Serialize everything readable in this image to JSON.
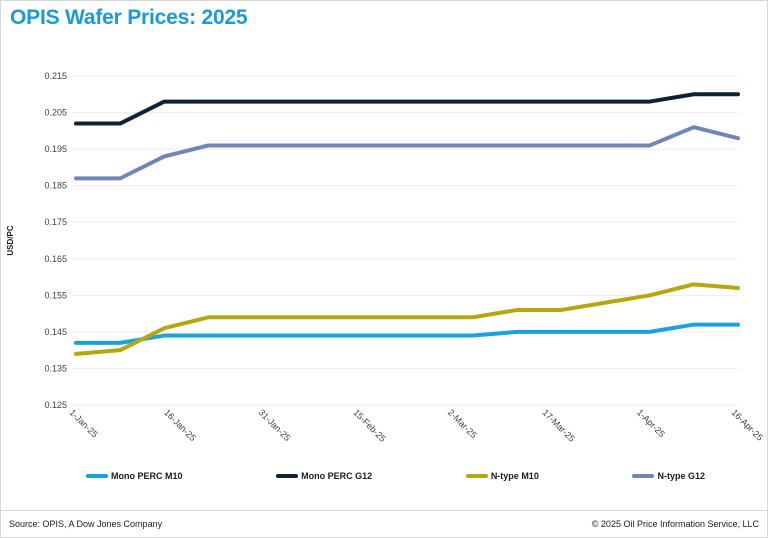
{
  "page": {
    "title": "OPIS Wafer Prices: 2025",
    "title_color": "#199bd8",
    "footer": {
      "source": "Source: OPIS, A Dow Jones Company",
      "copyright": "© 2025 Oil Price Information Service, LLC"
    }
  },
  "chart_data": {
    "type": "line",
    "title": "OPIS Wafer Prices: 2025",
    "xlabel": "",
    "ylabel": "USD/PC",
    "ylim": [
      0.125,
      0.215
    ],
    "y_ticks": [
      0.215,
      0.205,
      0.195,
      0.185,
      0.175,
      0.165,
      0.155,
      0.145,
      0.135,
      0.125
    ],
    "grid": "horizontal",
    "grid_color": "#ededed",
    "legend_position": "bottom",
    "x_days": [
      0,
      7,
      14,
      21,
      28,
      35,
      42,
      49,
      56,
      63,
      70,
      77,
      84,
      91,
      98,
      105
    ],
    "x_dates": [
      "1-Jan-25",
      "8-Jan-25",
      "15-Jan-25",
      "22-Jan-25",
      "29-Jan-25",
      "5-Feb-25",
      "12-Feb-25",
      "19-Feb-25",
      "26-Feb-25",
      "5-Mar-25",
      "12-Mar-25",
      "19-Mar-25",
      "26-Mar-25",
      "2-Apr-25",
      "9-Apr-25",
      "16-Apr-25"
    ],
    "x_ticks": [
      {
        "day": 0,
        "label": "1-Jan-25"
      },
      {
        "day": 15,
        "label": "16-Jan-25"
      },
      {
        "day": 30,
        "label": "31-Jan-25"
      },
      {
        "day": 45,
        "label": "15-Feb-25"
      },
      {
        "day": 60,
        "label": "2-Mar-25"
      },
      {
        "day": 75,
        "label": "17-Mar-25"
      },
      {
        "day": 90,
        "label": "1-Apr-25"
      },
      {
        "day": 105,
        "label": "16-Apr-25"
      }
    ],
    "series": [
      {
        "name": "Mono PERC M10",
        "color": "#1ba2dc",
        "values": [
          0.142,
          0.142,
          0.144,
          0.144,
          0.144,
          0.144,
          0.144,
          0.144,
          0.144,
          0.144,
          0.145,
          0.145,
          0.145,
          0.145,
          0.147,
          0.147
        ]
      },
      {
        "name": "Mono PERC G12",
        "color": "#0f2133",
        "values": [
          0.202,
          0.202,
          0.208,
          0.208,
          0.208,
          0.208,
          0.208,
          0.208,
          0.208,
          0.208,
          0.208,
          0.208,
          0.208,
          0.208,
          0.21,
          0.21
        ]
      },
      {
        "name": "N-type M10",
        "color": "#b4a80e",
        "values": [
          0.139,
          0.14,
          0.146,
          0.149,
          0.149,
          0.149,
          0.149,
          0.149,
          0.149,
          0.149,
          0.151,
          0.151,
          0.153,
          0.155,
          0.158,
          0.157
        ]
      },
      {
        "name": "N-type G12",
        "color": "#7186b8",
        "values": [
          0.187,
          0.187,
          0.193,
          0.196,
          0.196,
          0.196,
          0.196,
          0.196,
          0.196,
          0.196,
          0.196,
          0.196,
          0.196,
          0.196,
          0.201,
          0.198
        ]
      }
    ]
  }
}
